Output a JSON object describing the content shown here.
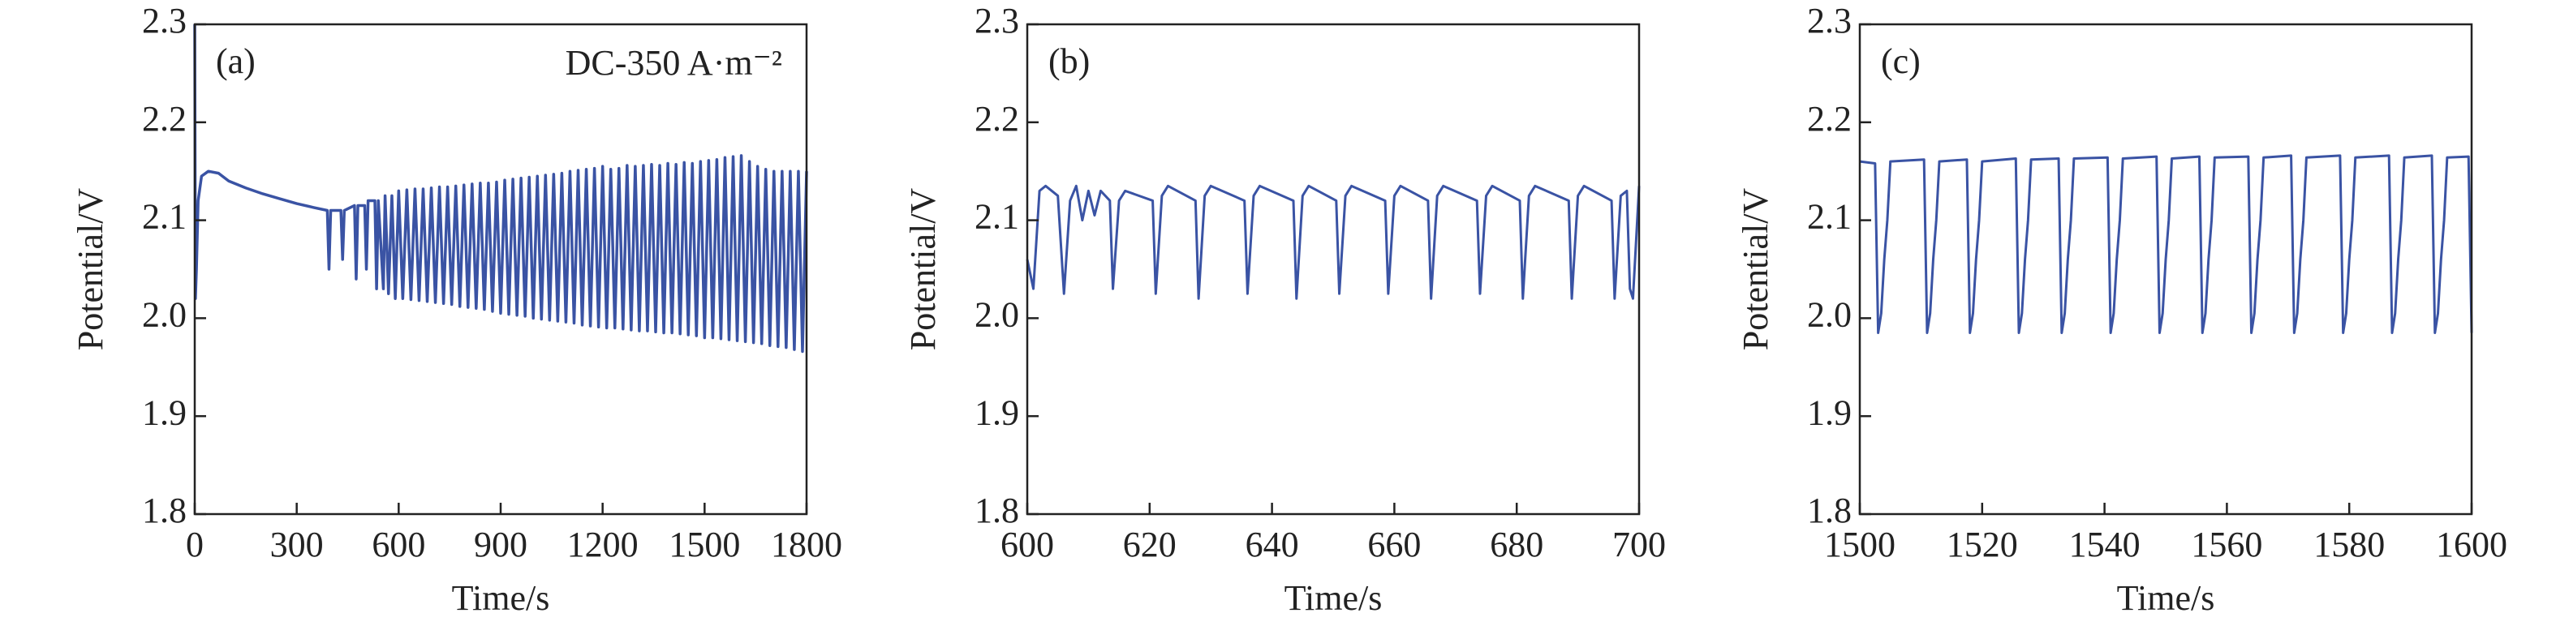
{
  "chart_data": [
    {
      "type": "line",
      "title": "(a)",
      "annotation": "DC-350 A·m⁻²",
      "xlabel": "Time/s",
      "ylabel": "Potential/V",
      "xlim": [
        0,
        1800
      ],
      "xticks": [
        0,
        300,
        600,
        900,
        1200,
        1500,
        1800
      ],
      "ylim": [
        1.8,
        2.3
      ],
      "yticks": [
        1.8,
        1.9,
        {
          "value": 2,
          "label": "2.0"
        },
        2.1,
        2.2,
        2.3
      ],
      "x": [
        0,
        2,
        5,
        10,
        20,
        40,
        70,
        100,
        150,
        200,
        250,
        300,
        350,
        390,
        395,
        400,
        430,
        435,
        440,
        470,
        475,
        480,
        500,
        505,
        510,
        530,
        535,
        540,
        555,
        560,
        570,
        580,
        590,
        600,
        612,
        624,
        636,
        648,
        660,
        672,
        684,
        696,
        708,
        720,
        732,
        744,
        756,
        768,
        780,
        792,
        804,
        816,
        828,
        840,
        852,
        864,
        876,
        888,
        900,
        912,
        924,
        936,
        948,
        960,
        972,
        984,
        996,
        1008,
        1020,
        1032,
        1044,
        1056,
        1068,
        1080,
        1092,
        1104,
        1116,
        1128,
        1140,
        1152,
        1164,
        1176,
        1188,
        1200,
        1212,
        1224,
        1236,
        1248,
        1260,
        1272,
        1284,
        1296,
        1308,
        1320,
        1332,
        1344,
        1356,
        1368,
        1380,
        1392,
        1404,
        1416,
        1428,
        1440,
        1452,
        1464,
        1476,
        1488,
        1500,
        1512,
        1524,
        1536,
        1548,
        1560,
        1572,
        1584,
        1596,
        1608,
        1620,
        1632,
        1644,
        1656,
        1668,
        1680,
        1692,
        1704,
        1716,
        1728,
        1740,
        1752,
        1764,
        1776,
        1788,
        1800
      ],
      "series": [
        {
          "color": "#3a53a4",
          "values": [
            2.3,
            2.02,
            2.05,
            2.12,
            2.145,
            2.15,
            2.148,
            2.14,
            2.133,
            2.127,
            2.122,
            2.117,
            2.113,
            2.11,
            2.05,
            2.11,
            2.11,
            2.06,
            2.11,
            2.115,
            2.04,
            2.115,
            2.115,
            2.05,
            2.12,
            2.12,
            2.03,
            2.12,
            2.03,
            2.125,
            2.025,
            2.125,
            2.02,
            2.13,
            2.02,
            2.131,
            2.019,
            2.132,
            2.018,
            2.132,
            2.017,
            2.133,
            2.016,
            2.134,
            2.015,
            2.134,
            2.014,
            2.135,
            2.012,
            2.136,
            2.011,
            2.137,
            2.01,
            2.138,
            2.009,
            2.138,
            2.007,
            2.139,
            2.005,
            2.141,
            2.004,
            2.142,
            2.003,
            2.143,
            2.002,
            2.144,
            2.0,
            2.145,
            1.999,
            2.146,
            1.998,
            2.147,
            1.997,
            2.148,
            1.996,
            2.15,
            1.995,
            2.151,
            1.993,
            2.152,
            1.992,
            2.153,
            1.991,
            2.155,
            1.99,
            2.152,
            1.99,
            2.153,
            1.989,
            2.156,
            1.988,
            2.155,
            1.987,
            2.156,
            1.987,
            2.157,
            1.986,
            2.156,
            1.985,
            2.158,
            1.985,
            2.157,
            1.984,
            2.159,
            1.983,
            2.158,
            1.982,
            2.16,
            1.98,
            2.161,
            1.98,
            2.162,
            1.979,
            2.164,
            1.978,
            2.165,
            1.977,
            2.166,
            1.976,
            2.16,
            1.975,
            2.155,
            1.974,
            2.152,
            1.972,
            2.15,
            1.971,
            2.15,
            1.97,
            2.15,
            1.968,
            2.15,
            1.966,
            2.15
          ]
        }
      ]
    },
    {
      "type": "line",
      "title": "(b)",
      "xlabel": "Time/s",
      "ylabel": "Potential/V",
      "xlim": [
        600,
        700
      ],
      "xticks": [
        600,
        620,
        640,
        660,
        680,
        700
      ],
      "ylim": [
        1.8,
        2.3
      ],
      "yticks": [
        1.8,
        1.9,
        {
          "value": 2,
          "label": "2.0"
        },
        2.1,
        2.2,
        2.3
      ],
      "x": [
        600,
        601,
        602,
        603,
        605,
        606,
        607,
        608,
        609,
        610,
        611,
        612,
        613.5,
        614,
        615,
        616,
        620.5,
        621,
        622,
        623,
        627.5,
        628,
        629,
        630,
        635.5,
        636,
        637,
        638,
        643.5,
        644,
        645,
        646,
        650.5,
        651,
        652,
        653,
        658.5,
        659,
        660,
        661,
        665.5,
        666,
        667,
        668,
        673.5,
        674,
        675,
        676,
        680.5,
        681,
        682,
        683,
        688.5,
        689,
        690,
        691,
        695.5,
        696,
        697,
        698,
        698.5,
        699,
        700
      ],
      "series": [
        {
          "color": "#3a53a4",
          "values": [
            2.06,
            2.03,
            2.13,
            2.135,
            2.125,
            2.025,
            2.12,
            2.135,
            2.1,
            2.13,
            2.105,
            2.13,
            2.12,
            2.03,
            2.12,
            2.13,
            2.12,
            2.025,
            2.125,
            2.135,
            2.12,
            2.02,
            2.125,
            2.135,
            2.12,
            2.025,
            2.125,
            2.135,
            2.12,
            2.02,
            2.125,
            2.135,
            2.12,
            2.025,
            2.125,
            2.135,
            2.12,
            2.025,
            2.125,
            2.135,
            2.12,
            2.02,
            2.125,
            2.135,
            2.12,
            2.025,
            2.125,
            2.135,
            2.12,
            2.02,
            2.125,
            2.135,
            2.12,
            2.02,
            2.125,
            2.135,
            2.12,
            2.02,
            2.125,
            2.13,
            2.03,
            2.02,
            2.135
          ]
        }
      ]
    },
    {
      "type": "line",
      "title": "(c)",
      "xlabel": "Time/s",
      "ylabel": "Potential/V",
      "xlim": [
        1500,
        1600
      ],
      "xticks": [
        1500,
        1520,
        1540,
        1560,
        1580,
        1600
      ],
      "ylim": [
        1.8,
        2.3
      ],
      "yticks": [
        1.8,
        1.9,
        {
          "value": 2,
          "label": "2.0"
        },
        2.1,
        2.2,
        2.3
      ],
      "x": [
        1500,
        1502.5,
        1503,
        1503.5,
        1504,
        1504.5,
        1505,
        1510.5,
        1511,
        1511.5,
        1512,
        1512.5,
        1513,
        1517.5,
        1518,
        1518.5,
        1519,
        1519.5,
        1520,
        1525.5,
        1526,
        1526.5,
        1527,
        1527.5,
        1528,
        1532.5,
        1533,
        1533.5,
        1534,
        1534.5,
        1535,
        1540.5,
        1541,
        1541.5,
        1542,
        1542.5,
        1543,
        1548.5,
        1549,
        1549.5,
        1550,
        1550.5,
        1551,
        1555.5,
        1556,
        1556.5,
        1557,
        1557.5,
        1558,
        1563.5,
        1564,
        1564.5,
        1565,
        1565.5,
        1566,
        1570.5,
        1571,
        1571.5,
        1572,
        1572.5,
        1573,
        1578.5,
        1579,
        1579.5,
        1580,
        1580.5,
        1581,
        1586.5,
        1587,
        1587.5,
        1588,
        1588.5,
        1589,
        1593.5,
        1594,
        1594.5,
        1595,
        1595.5,
        1596,
        1599.5,
        1600
      ],
      "series": [
        {
          "color": "#3a53a4",
          "values": [
            2.16,
            2.158,
            1.985,
            2.005,
            2.06,
            2.1,
            2.16,
            2.162,
            1.985,
            2.005,
            2.06,
            2.1,
            2.16,
            2.162,
            1.985,
            2.005,
            2.06,
            2.1,
            2.16,
            2.163,
            1.985,
            2.005,
            2.06,
            2.1,
            2.162,
            2.163,
            1.985,
            2.005,
            2.06,
            2.1,
            2.163,
            2.164,
            1.985,
            2.005,
            2.06,
            2.1,
            2.163,
            2.165,
            1.985,
            2.005,
            2.06,
            2.1,
            2.163,
            2.165,
            1.985,
            2.005,
            2.06,
            2.1,
            2.164,
            2.165,
            1.985,
            2.005,
            2.06,
            2.1,
            2.164,
            2.166,
            1.985,
            2.005,
            2.06,
            2.1,
            2.164,
            2.166,
            1.985,
            2.005,
            2.06,
            2.1,
            2.164,
            2.166,
            1.985,
            2.005,
            2.06,
            2.1,
            2.164,
            2.166,
            1.985,
            2.005,
            2.06,
            2.1,
            2.164,
            2.165,
            1.985
          ]
        }
      ]
    }
  ]
}
